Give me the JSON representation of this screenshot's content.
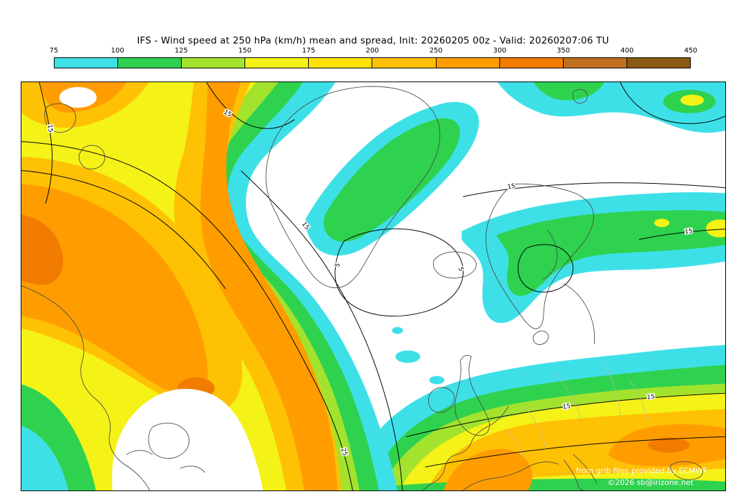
{
  "title": "IFS - Wind speed at 250 hPa (km/h) mean and spread, Init: 20260205 00z - Valid: 20260207:06 TU",
  "colorbar": {
    "ticks": [
      "75",
      "100",
      "125",
      "150",
      "175",
      "200",
      "250",
      "300",
      "350",
      "400",
      "450"
    ],
    "colors": [
      "#3EE0E8",
      "#2FD24F",
      "#A3E32D",
      "#F4F216",
      "#FFE204",
      "#FFC103",
      "#FF9D00",
      "#F17C00",
      "#C07020",
      "#8B5A12"
    ]
  },
  "map": {
    "attribution_line1": "from grib files provided by ECMWF",
    "attribution_line2": "©2026 sb@irizone.net",
    "contour_labels": [
      {
        "text": "15"
      },
      {
        "text": "15"
      },
      {
        "text": "15"
      },
      {
        "text": "5"
      },
      {
        "text": "5"
      },
      {
        "text": "25"
      },
      {
        "text": "15"
      },
      {
        "text": "15"
      },
      {
        "text": "15"
      },
      {
        "text": "15"
      }
    ]
  },
  "chart_data": {
    "type": "heatmap",
    "subtype": "filled-contour weather map",
    "model": "IFS",
    "field": "Wind speed at 250 hPa",
    "units": "km/h",
    "statistic": "ensemble mean (color shading) and spread (black contours)",
    "init": "20260205 00z",
    "valid": "20260207:06 TU",
    "region": "North Atlantic and Europe",
    "fill_levels_kmh": [
      75,
      100,
      125,
      150,
      175,
      200,
      250,
      300,
      350,
      400,
      450
    ],
    "fill_colors": [
      "#3EE0E8",
      "#2FD24F",
      "#A3E32D",
      "#F4F216",
      "#FFE204",
      "#FFC103",
      "#FF9D00",
      "#F17C00",
      "#C07020",
      "#8B5A12"
    ],
    "spread_contour_levels_kmh": [
      5,
      15,
      25
    ],
    "max_shaded_band_kmh": "250-300",
    "features": [
      "broad curved jet streak over eastern North America / western Atlantic with a 250-300 km/h orange core",
      "jet branch diving southward through the central Atlantic toward the bottom of the domain",
      "second jet streak stretching across southern Europe / Mediterranean with two 250-300 km/h cores",
      "75-125 km/h cyan-green band across northern Europe and western Russia",
      "light winds (below 75 km/h, white) over Greenland and the central North Atlantic",
      "spread contours labeled 5, 15 and 25 km/h around the jet axes"
    ],
    "legend_position": "top horizontal colorbar",
    "grid": false
  }
}
